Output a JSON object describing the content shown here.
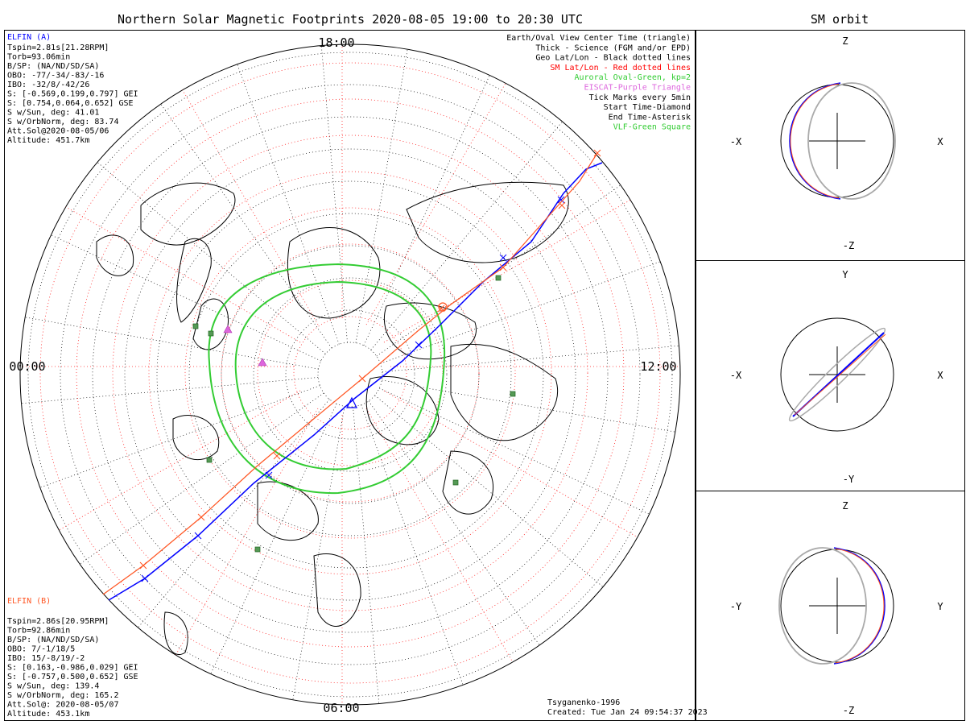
{
  "chart_data": [
    {
      "type": "scatter",
      "title": "Northern Solar Magnetic Footprints 2020-08-05 19:00 to 20:30 UTC",
      "projection": "north polar",
      "time_labels": {
        "top": "18:00",
        "left": "00:00",
        "right": "12:00",
        "bottom": "06:00"
      },
      "grid": true,
      "legend_placement": "top-right",
      "legend": [
        {
          "text": "Earth/Oval View Center Time (triangle)",
          "color": "#000000"
        },
        {
          "text": "Thick - Science (FGM and/or EPD)",
          "color": "#000000"
        },
        {
          "text": "Geo Lat/Lon - Black dotted lines",
          "color": "#000000"
        },
        {
          "text": "SM Lat/Lon - Red dotted lines",
          "color": "#ff0000"
        },
        {
          "text": "Auroral Oval-Green, kp=2",
          "color": "#33cc33"
        },
        {
          "text": "EISCAT-Purple Triangle",
          "color": "#dd66dd"
        },
        {
          "text": "Tick Marks every 5min",
          "color": "#000000"
        },
        {
          "text": "Start Time-Diamond",
          "color": "#000000"
        },
        {
          "text": "End Time-Asterisk",
          "color": "#000000"
        },
        {
          "text": "VLF-Green Square",
          "color": "#33cc33"
        }
      ],
      "elfin_a": {
        "name": "ELFIN (A)",
        "color": "#0000ff",
        "lines": [
          "Tspin=2.81s[21.28RPM]",
          "Torb=93.06min",
          "B/SP: (NA/ND/SD/SA)",
          "OBO: -77/-34/-83/-16",
          "IBO: -32/8/-42/26",
          "S: [-0.569,0.199,0.797] GEI",
          "S: [0.754,0.064,0.652] GSE",
          "S w/Sun, deg: 41.01",
          "S w/OrbNorm, deg: 83.74",
          "Att.Sol@2020-08-05/06",
          "Altitude: 451.7km"
        ]
      },
      "elfin_b": {
        "name": "ELFIN (B)",
        "color": "#ff5522",
        "lines": [
          "Tspin=2.86s[20.95RPM]",
          "Torb=92.86min",
          "B/SP: (NA/ND/SD/SA)",
          "OBO: 7/-1/18/5",
          "IBO: 15/-8/19/-2",
          "S: [0.163,-0.986,0.029] GEI",
          "S: [-0.757,0.500,0.652] GSE",
          "S w/Sun, deg: 139.4",
          "S w/OrbNorm, deg: 165.2",
          "Att.Sol@: 2020-08-05/07",
          "Altitude: 453.1km"
        ]
      },
      "footer": {
        "model": "Tsyganenko-1996",
        "created": "Created: Tue Jan 24 09:54:37 2023"
      }
    },
    {
      "type": "line",
      "title": "SM orbit",
      "panels": [
        {
          "axes": {
            "up": "Z",
            "down": "-Z",
            "left": "-X",
            "right": "X"
          }
        },
        {
          "axes": {
            "up": "Y",
            "down": "-Y",
            "left": "-X",
            "right": "X"
          }
        },
        {
          "axes": {
            "up": "Z",
            "down": "-Z",
            "left": "-Y",
            "right": "Y"
          }
        }
      ]
    }
  ]
}
